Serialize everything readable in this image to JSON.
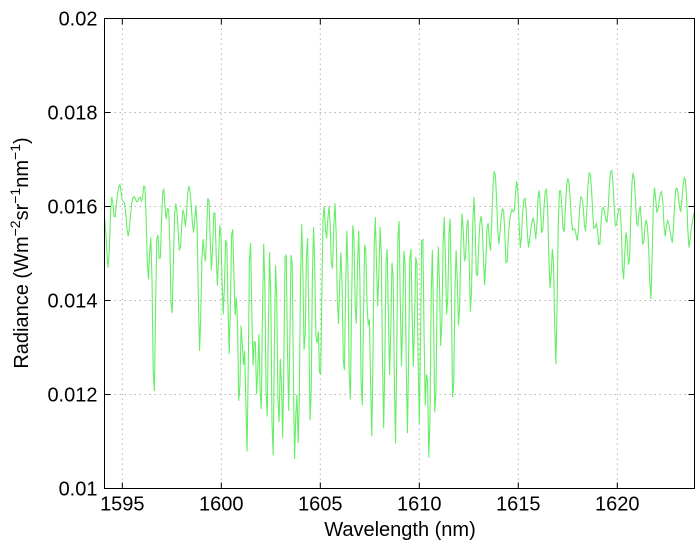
{
  "chart_data": {
    "type": "line",
    "xlabel": "Wavelength (nm)",
    "ylabel_parts": [
      "Radiance (Wm",
      "−2",
      "sr",
      "−1",
      "nm",
      "−1",
      ")"
    ],
    "xlim": [
      1594.1,
      1623.9
    ],
    "ylim": [
      0.01,
      0.02
    ],
    "xticks": [
      1595,
      1600,
      1605,
      1610,
      1615,
      1620
    ],
    "yticks": [
      0.01,
      0.012,
      0.014,
      0.016,
      0.018,
      0.02
    ],
    "xtick_labels": [
      "1595",
      "1600",
      "1605",
      "1610",
      "1615",
      "1620"
    ],
    "ytick_labels": [
      "0.01",
      "0.012",
      "0.014",
      "0.016",
      "0.018",
      "0.02"
    ],
    "grid": true,
    "series": [
      {
        "color": "#66ee66",
        "baseline": 0.0162,
        "sampling_nm": 0.06,
        "absorption_lines": [
          [
            1594.3,
            0.0151
          ],
          [
            1594.6,
            0.0156
          ],
          [
            1595.0,
            0.0157
          ],
          [
            1595.3,
            0.0159
          ],
          [
            1596.0,
            0.0156
          ],
          [
            1596.3,
            0.0147
          ],
          [
            1596.6,
            0.012
          ],
          [
            1596.9,
            0.015
          ],
          [
            1597.2,
            0.0152
          ],
          [
            1597.5,
            0.0138
          ],
          [
            1597.9,
            0.0155
          ],
          [
            1598.2,
            0.0151
          ],
          [
            1598.6,
            0.0154
          ],
          [
            1598.9,
            0.0133
          ],
          [
            1599.2,
            0.0148
          ],
          [
            1599.5,
            0.0145
          ],
          [
            1599.8,
            0.014
          ],
          [
            1600.1,
            0.0143
          ],
          [
            1600.4,
            0.0127
          ],
          [
            1600.7,
            0.0136
          ],
          [
            1600.9,
            0.0113
          ],
          [
            1601.1,
            0.0131
          ],
          [
            1601.3,
            0.0112
          ],
          [
            1601.6,
            0.0128
          ],
          [
            1601.8,
            0.0119
          ],
          [
            1602.0,
            0.011
          ],
          [
            1602.3,
            0.0117
          ],
          [
            1602.6,
            0.0107
          ],
          [
            1602.9,
            0.0112
          ],
          [
            1603.1,
            0.0106
          ],
          [
            1603.4,
            0.0118
          ],
          [
            1603.7,
            0.011
          ],
          [
            1603.9,
            0.0114
          ],
          [
            1604.2,
            0.0123
          ],
          [
            1604.5,
            0.0112
          ],
          [
            1604.8,
            0.0134
          ],
          [
            1605.0,
            0.0127
          ],
          [
            1605.3,
            0.015
          ],
          [
            1605.6,
            0.0143
          ],
          [
            1605.9,
            0.0138
          ],
          [
            1606.2,
            0.0124
          ],
          [
            1606.5,
            0.0117
          ],
          [
            1606.8,
            0.0129
          ],
          [
            1607.1,
            0.0121
          ],
          [
            1607.4,
            0.0136
          ],
          [
            1607.6,
            0.0113
          ],
          [
            1607.9,
            0.0133
          ],
          [
            1608.2,
            0.0116
          ],
          [
            1608.5,
            0.0126
          ],
          [
            1608.8,
            0.0109
          ],
          [
            1609.1,
            0.0123
          ],
          [
            1609.4,
            0.0112
          ],
          [
            1609.7,
            0.0131
          ],
          [
            1610.0,
            0.011
          ],
          [
            1610.3,
            0.0118
          ],
          [
            1610.5,
            0.0104
          ],
          [
            1610.8,
            0.012
          ],
          [
            1611.1,
            0.0127
          ],
          [
            1611.4,
            0.0135
          ],
          [
            1611.7,
            0.0115
          ],
          [
            1612.0,
            0.0139
          ],
          [
            1612.3,
            0.0147
          ],
          [
            1612.6,
            0.0133
          ],
          [
            1612.9,
            0.0146
          ],
          [
            1613.3,
            0.0144
          ],
          [
            1613.6,
            0.015
          ],
          [
            1614.0,
            0.0153
          ],
          [
            1614.4,
            0.0149
          ],
          [
            1614.8,
            0.0155
          ],
          [
            1615.1,
            0.0151
          ],
          [
            1615.5,
            0.0154
          ],
          [
            1615.9,
            0.015
          ],
          [
            1616.2,
            0.0153
          ],
          [
            1616.6,
            0.0145
          ],
          [
            1616.9,
            0.0128
          ],
          [
            1617.3,
            0.0153
          ],
          [
            1617.7,
            0.0158
          ],
          [
            1618.0,
            0.0155
          ],
          [
            1618.4,
            0.0154
          ],
          [
            1618.8,
            0.0157
          ],
          [
            1619.1,
            0.0153
          ],
          [
            1619.5,
            0.0157
          ],
          [
            1619.9,
            0.0156
          ],
          [
            1620.3,
            0.0146
          ],
          [
            1620.6,
            0.0148
          ],
          [
            1621.0,
            0.0155
          ],
          [
            1621.3,
            0.0151
          ],
          [
            1621.7,
            0.0142
          ],
          [
            1622.0,
            0.0156
          ],
          [
            1622.4,
            0.0152
          ],
          [
            1622.8,
            0.0155
          ],
          [
            1623.2,
            0.0158
          ],
          [
            1623.6,
            0.0153
          ]
        ]
      }
    ]
  }
}
